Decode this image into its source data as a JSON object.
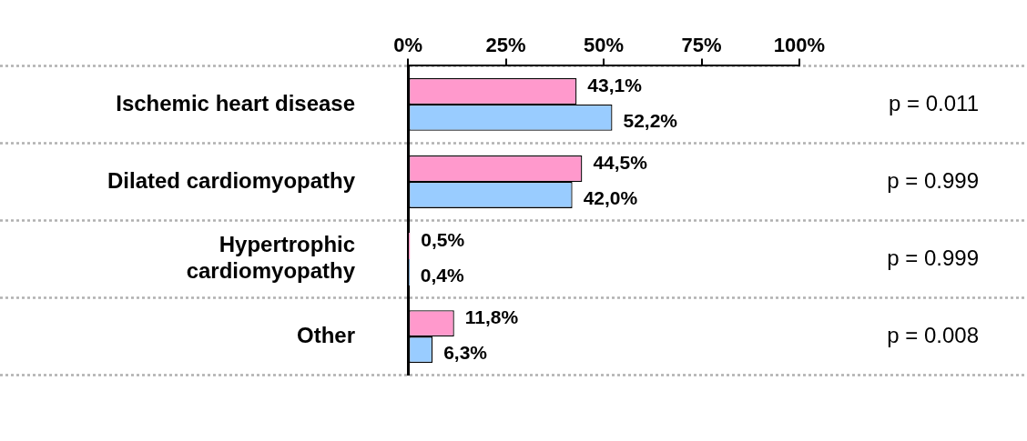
{
  "chart_data": {
    "type": "bar",
    "orientation": "horizontal",
    "categories": [
      "Ischemic heart disease",
      "Dilated cardiomyopathy",
      "Hypertrophic cardiomyopathy",
      "Other"
    ],
    "series": [
      {
        "color": "#ff99cc",
        "values": [
          43.1,
          44.5,
          0.5,
          11.8
        ],
        "value_labels": [
          "43,1%",
          "44,5%",
          "0,5%",
          "11,8%"
        ]
      },
      {
        "color": "#99ccff",
        "values": [
          52.2,
          42.0,
          0.4,
          6.3
        ],
        "value_labels": [
          "52,2%",
          "42,0%",
          "0,4%",
          "6,3%"
        ]
      }
    ],
    "xlim": [
      0,
      100
    ],
    "xticks": [
      {
        "value": 0,
        "label": "0%"
      },
      {
        "value": 25,
        "label": "25%"
      },
      {
        "value": 50,
        "label": "50%"
      },
      {
        "value": 75,
        "label": "75%"
      },
      {
        "value": 100,
        "label": "100%"
      }
    ],
    "grid": "y",
    "legend": false,
    "annotations": [
      "p = 0.011",
      "p = 0.999",
      "p = 0.999",
      "p = 0.008"
    ]
  }
}
